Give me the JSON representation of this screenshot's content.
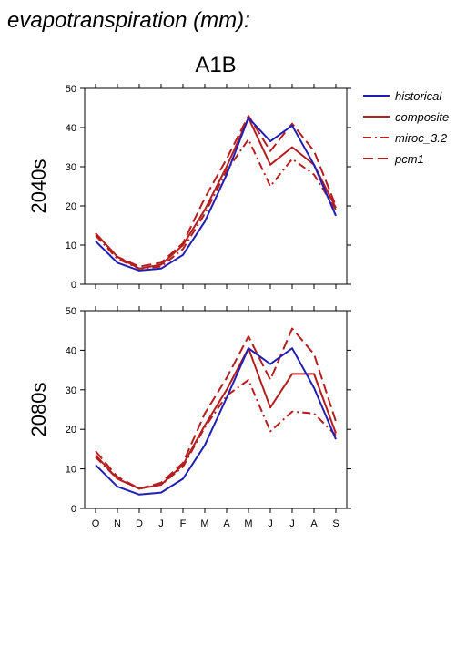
{
  "figure_title": "evapotranspiration (mm):",
  "colors": {
    "historical": "#1f1fb4",
    "scenario": "#b41e1e"
  },
  "legend": [
    {
      "key": "historical",
      "label": "historical",
      "dash": ""
    },
    {
      "key": "composite",
      "label": "composite",
      "dash": ""
    },
    {
      "key": "miroc_3.2",
      "label": "miroc_3.2",
      "dash": "9,4,2,4"
    },
    {
      "key": "pcm1",
      "label": "pcm1",
      "dash": "11,5"
    }
  ],
  "chart_data": [
    {
      "type": "line",
      "title": "A1B",
      "ylabel": "2040s",
      "categories": [
        "O",
        "N",
        "D",
        "J",
        "F",
        "M",
        "A",
        "M",
        "J",
        "J",
        "A",
        "S"
      ],
      "ylim": [
        0,
        50
      ],
      "yticks": [
        0,
        10,
        20,
        30,
        40,
        50
      ],
      "series": [
        {
          "name": "historical",
          "values": [
            11,
            5.5,
            3.5,
            4,
            7.5,
            16,
            28,
            42.5,
            36.5,
            40.5,
            30.5,
            17.5
          ]
        },
        {
          "name": "composite",
          "values": [
            13,
            7,
            4,
            5,
            10,
            19,
            30,
            42.5,
            30.5,
            35,
            30.5,
            19.5
          ]
        },
        {
          "name": "miroc_3.2",
          "values": [
            12.5,
            6.5,
            4,
            4.5,
            9,
            18,
            29,
            37,
            25,
            32,
            28,
            19
          ]
        },
        {
          "name": "pcm1",
          "values": [
            13,
            7,
            4.5,
            5.5,
            10.5,
            22,
            32,
            43,
            34,
            41,
            34,
            20
          ]
        }
      ]
    },
    {
      "type": "line",
      "title": "",
      "ylabel": "2080s",
      "categories": [
        "O",
        "N",
        "D",
        "J",
        "F",
        "M",
        "A",
        "M",
        "J",
        "J",
        "A",
        "S"
      ],
      "ylim": [
        0,
        50
      ],
      "yticks": [
        0,
        10,
        20,
        30,
        40,
        50
      ],
      "series": [
        {
          "name": "historical",
          "values": [
            11,
            5.5,
            3.5,
            4,
            7.5,
            16,
            28,
            40.5,
            36.5,
            40.5,
            30.5,
            17.5
          ]
        },
        {
          "name": "composite",
          "values": [
            13.5,
            7.5,
            5,
            6,
            11,
            21,
            30,
            40.5,
            25.5,
            34,
            34,
            19
          ]
        },
        {
          "name": "miroc_3.2",
          "values": [
            13,
            7.5,
            5,
            6,
            10.5,
            20.5,
            28.5,
            32.5,
            19.5,
            24.5,
            24,
            18.5
          ]
        },
        {
          "name": "pcm1",
          "values": [
            14.5,
            8,
            5,
            6.5,
            11.5,
            24,
            33,
            43.5,
            32.5,
            45.5,
            39,
            22
          ]
        }
      ]
    }
  ]
}
